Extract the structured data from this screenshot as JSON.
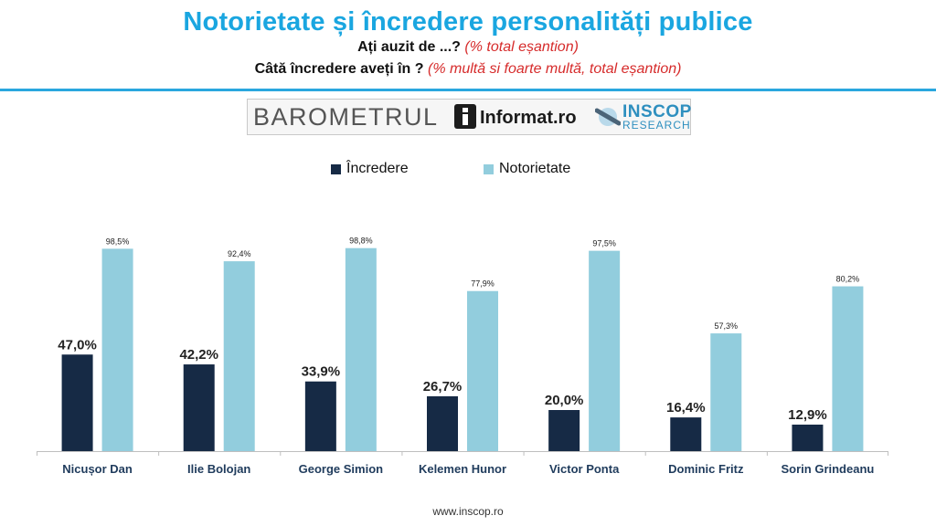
{
  "header": {
    "title": "Notorietate și încredere personalități publice",
    "q1_text": "Ați auzit de ...?",
    "q1_note": "(% total eșantion)",
    "q2_text": "Câtă încredere aveți în ?",
    "q2_note": "(%  multă si foarte multă,  total eșantion)"
  },
  "banner": {
    "barometru": "BAROMETRUL",
    "informat": "Informat.ro",
    "inscop": "INSCOP",
    "research": "RESEARCH"
  },
  "footer": {
    "url": "www.inscop.ro"
  },
  "colors": {
    "incredere": "#162a45",
    "notorietate": "#92cddd",
    "accent": "#1aa6e0"
  },
  "chart_data": {
    "type": "bar",
    "categories": [
      "Nicușor Dan",
      "Ilie Bolojan",
      "George Simion",
      "Kelemen Hunor",
      "Victor Ponta",
      "Dominic Fritz",
      "Sorin Grindeanu"
    ],
    "series": [
      {
        "name": "Încredere",
        "values": [
          47.0,
          42.2,
          33.9,
          26.7,
          20.0,
          16.4,
          12.9
        ],
        "labels": [
          "47,0%",
          "42,2%",
          "33,9%",
          "26,7%",
          "20,0%",
          "16,4%",
          "12,9%"
        ]
      },
      {
        "name": "Notorietate",
        "values": [
          98.5,
          92.4,
          98.8,
          77.9,
          97.5,
          57.3,
          80.2
        ],
        "labels": [
          "98,5%",
          "92,4%",
          "98,8%",
          "77,9%",
          "97,5%",
          "57,3%",
          "80,2%"
        ]
      }
    ],
    "ylim": [
      0,
      100
    ],
    "grid": false,
    "legend": "top-center"
  }
}
